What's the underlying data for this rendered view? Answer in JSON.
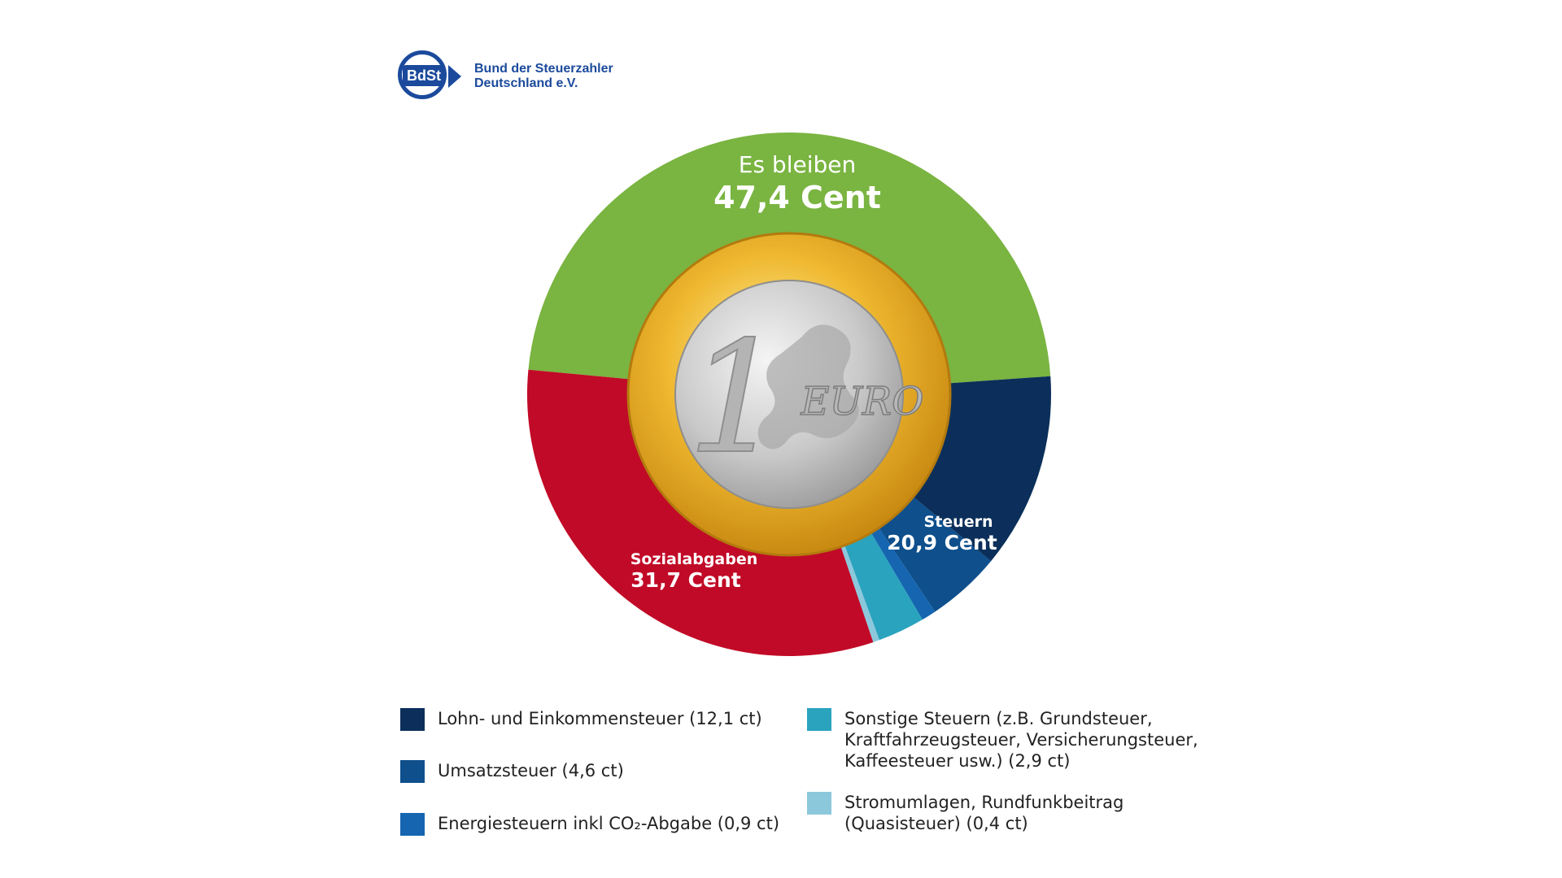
{
  "logo": {
    "abbr": "BdSt",
    "name_line1": "Bund der Steuerzahler",
    "name_line2": "Deutschland e.V."
  },
  "coin": {
    "numeral": "1",
    "word": "EURO"
  },
  "chart_data": {
    "type": "pie",
    "style": "donut",
    "unit": "Cent",
    "groups": [
      {
        "label": "Es bleiben",
        "value_label": "47,4 Cent",
        "value": 47.4
      },
      {
        "label": "Steuern",
        "value_label": "20,9 Cent",
        "value": 20.9
      },
      {
        "label": "Sozialabgaben",
        "value_label": "31,7 Cent",
        "value": 31.7
      }
    ],
    "slices": [
      {
        "key": "bleiben",
        "value": 47.4,
        "color": "#7ab441"
      },
      {
        "key": "lohn",
        "value": 12.1,
        "color": "#0b2f5a"
      },
      {
        "key": "umsatz",
        "value": 4.6,
        "color": "#0e4f8c"
      },
      {
        "key": "energie",
        "value": 0.9,
        "color": "#1565b0"
      },
      {
        "key": "sonstige",
        "value": 2.9,
        "color": "#2aa3be"
      },
      {
        "key": "strom",
        "value": 0.4,
        "color": "#8cc8dc"
      },
      {
        "key": "sozial",
        "value": 31.7,
        "color": "#c10a27"
      }
    ],
    "legend": {
      "placement": "bottom",
      "items": [
        {
          "key": "lohn",
          "text": "Lohn- und Einkommensteuer (12,1 ct)",
          "color": "#0b2f5a"
        },
        {
          "key": "umsatz",
          "text": "Umsatzsteuer (4,6 ct)",
          "color": "#0e4f8c"
        },
        {
          "key": "energie",
          "text": "Energiesteuern inkl CO₂-Abgabe (0,9 ct)",
          "color": "#1565b0"
        },
        {
          "key": "sonstige",
          "text": "Sonstige Steuern (z.B. Grundsteuer,\nKraftfahrzeugsteuer, Versicherungsteuer,\nKaffeesteuer usw.) (2,9 ct)",
          "color": "#2aa3be"
        },
        {
          "key": "strom",
          "text": "Stromumlagen, Rundfunkbeitrag\n(Quasisteuer) (0,4 ct)",
          "color": "#8cc8dc"
        }
      ]
    }
  }
}
